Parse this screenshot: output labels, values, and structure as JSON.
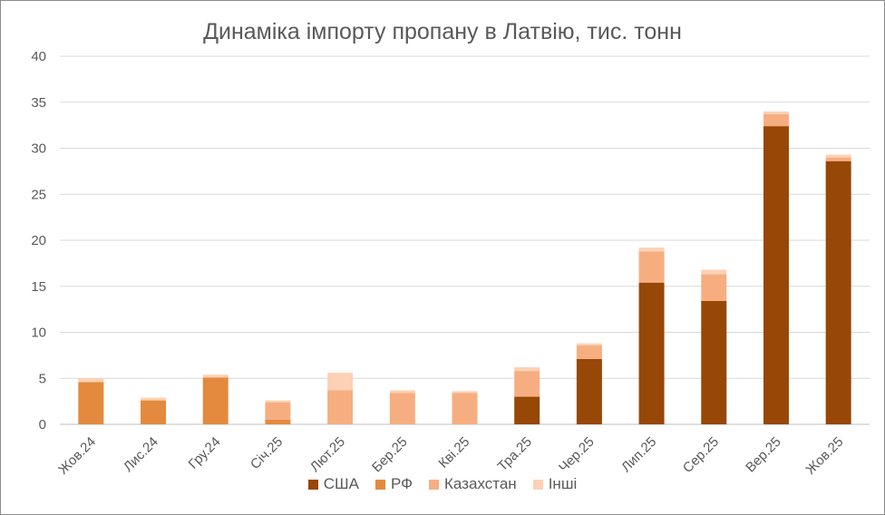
{
  "chart_data": {
    "type": "bar",
    "stacked": true,
    "title": "Динаміка імпорту пропану в Латвію, тис. тонн",
    "xlabel": "",
    "ylabel": "",
    "ylim": [
      0,
      40
    ],
    "yticks": [
      0,
      5,
      10,
      15,
      20,
      25,
      30,
      35,
      40
    ],
    "grid": true,
    "legend_position": "bottom",
    "categories": [
      "Жов.24",
      "Лис.24",
      "Гру.24",
      "Січ.25",
      "Лют.25",
      "Бер.25",
      "Кві.25",
      "Тра.25",
      "Чер.25",
      "Лип.25",
      "Сер.25",
      "Вер.25",
      "Жов.25"
    ],
    "series": [
      {
        "name": "США",
        "color": "#974706",
        "values": [
          0,
          0,
          0,
          0,
          0,
          0,
          0,
          3.0,
          7.1,
          15.4,
          13.4,
          32.4,
          28.6
        ]
      },
      {
        "name": "РФ",
        "color": "#e48a3e",
        "values": [
          4.6,
          2.6,
          5.1,
          0.5,
          0,
          0,
          0,
          0,
          0,
          0,
          0,
          0,
          0
        ]
      },
      {
        "name": "Казахстан",
        "color": "#f6ae81",
        "values": [
          0,
          0,
          0,
          1.9,
          3.7,
          3.4,
          3.4,
          2.8,
          1.5,
          3.4,
          2.9,
          1.3,
          0.4
        ]
      },
      {
        "name": "Інші",
        "color": "#fcd1b6",
        "values": [
          0.4,
          0.3,
          0.3,
          0.2,
          1.9,
          0.3,
          0.2,
          0.4,
          0.2,
          0.4,
          0.5,
          0.3,
          0.3
        ]
      }
    ]
  }
}
